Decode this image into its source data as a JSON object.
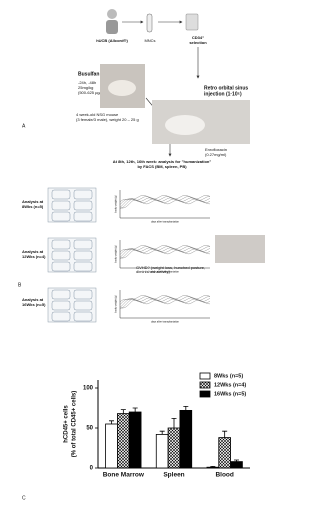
{
  "panel_a": {
    "label": "A",
    "source": "hUCB (Allcord®)",
    "mncs": "MNCs",
    "selection": [
      "CD34⁺",
      "selection"
    ],
    "busulfan": "Busulfan ip",
    "dose": [
      "-24h, -48h",
      "25mg/kg",
      "(500-625 µg/dose)"
    ],
    "mouse": [
      "4 week-old NSG mouse",
      "(3 female/3 male), weight 20 – 25 g"
    ],
    "injection": [
      "Retro orbital sinus",
      "injection (1·10⁵)"
    ],
    "antibiotic": [
      "Enrofloxacin",
      "(0.27mg/ml)"
    ],
    "analysis": [
      "At 8th, 12th, 16th week: analysis for \"humanization\"",
      "by FACS (BM, spleen, PB)"
    ]
  },
  "panel_b": {
    "label": "B",
    "groups": [
      {
        "title": "Analysis at",
        "subtitle": "8Wks (n=5)"
      },
      {
        "title": "Analysis at",
        "subtitle": "12Wks (n=4)"
      },
      {
        "title": "Analysis at",
        "subtitle": "16Wks (n=5)"
      }
    ],
    "gvhd": [
      "GVHD? (weight loss, hunched posture,",
      "diminished activity)"
    ],
    "y_label": "body weight (g)",
    "x_label": "days after transplantation"
  },
  "panel_c": {
    "label": "C"
  },
  "chart_data": {
    "type": "bar",
    "y_label": [
      "hCD45+ cells",
      "(% of total CD45+ cells)"
    ],
    "categories": [
      "Bone Marrow",
      "Spleen",
      "Blood"
    ],
    "series": [
      {
        "name": "8Wks (n=5)",
        "color": "#ffffff",
        "hatch": false,
        "values": [
          55,
          42,
          1
        ],
        "errors": [
          4,
          4,
          1
        ]
      },
      {
        "name": "12Wks (n=4)",
        "color": "#ffffff",
        "hatch": true,
        "values": [
          68,
          50,
          38
        ],
        "errors": [
          5,
          12,
          8
        ]
      },
      {
        "name": "16Wks (n=5)",
        "color": "#000000",
        "hatch": false,
        "values": [
          70,
          72,
          8
        ],
        "errors": [
          5,
          5,
          2
        ]
      }
    ],
    "ylim": [
      0,
      110
    ],
    "yticks": [
      0,
      50,
      100
    ],
    "legend": "upper right"
  }
}
